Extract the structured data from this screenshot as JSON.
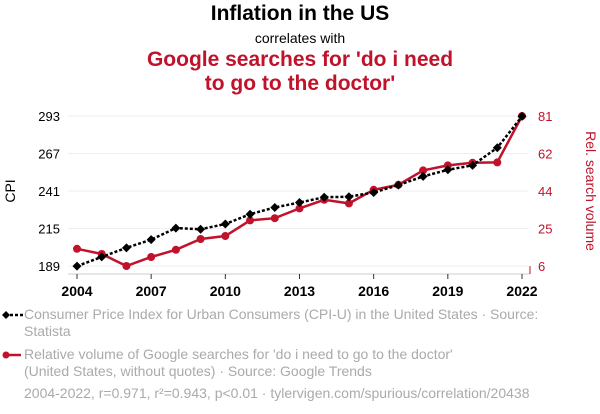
{
  "header": {
    "title": "Inflation in the US",
    "subtitle": "correlates with",
    "title2": "Google searches for 'do i need to go to the doctor'"
  },
  "chart_data": {
    "type": "line",
    "x": [
      2004,
      2005,
      2006,
      2007,
      2008,
      2009,
      2010,
      2011,
      2012,
      2013,
      2014,
      2015,
      2016,
      2017,
      2018,
      2019,
      2020,
      2021,
      2022
    ],
    "xticks": [
      "2004",
      "2007",
      "2010",
      "2013",
      "2016",
      "2019",
      "2022"
    ],
    "ylabel": "CPI",
    "y2label": "Rel. search volume",
    "ylim": [
      189,
      293
    ],
    "y2lim": [
      6,
      81
    ],
    "yticks": [
      "189",
      "215",
      "241",
      "267",
      "293"
    ],
    "y2ticks": [
      "6",
      "25",
      "44",
      "62",
      "81"
    ],
    "grid": true,
    "legend": "bottom",
    "series": [
      {
        "name": "Consumer Price Index for Urban Consumers (CPI-U) in the United States",
        "source": "Source: Statista",
        "axis": "left",
        "color": "#000000",
        "marker": "diamond",
        "style": "dotted",
        "values": [
          188.9,
          195.3,
          201.6,
          207.3,
          215.3,
          214.5,
          218.1,
          224.9,
          229.6,
          233.0,
          236.7,
          237.0,
          240.0,
          245.1,
          251.1,
          255.7,
          258.8,
          271.0,
          292.7
        ]
      },
      {
        "name": "Relative volume of Google searches for 'do i need to go to the doctor' (United States, without quotes)",
        "source": "Source: Google Trends",
        "axis": "right",
        "color": "#c0132b",
        "marker": "circle",
        "style": "solid",
        "values": [
          14.6,
          12.0,
          6.0,
          10.5,
          14.1,
          19.5,
          21.0,
          28.8,
          29.9,
          34.8,
          39.1,
          37.3,
          44.1,
          46.6,
          53.8,
          56.3,
          57.6,
          57.8,
          81.0
        ]
      }
    ]
  },
  "legend": {
    "item1": "Consumer Price Index for Urban Consumers (CPI-U) in the United States · Source: Statista",
    "item2": "Relative volume of Google searches for 'do i need to go to the doctor' (United States, without quotes) · Source: Google Trends"
  },
  "footer": "2004-2022, r=0.971, r²=0.943, p<0.01 · tylervigen.com/spurious/correlation/20438"
}
